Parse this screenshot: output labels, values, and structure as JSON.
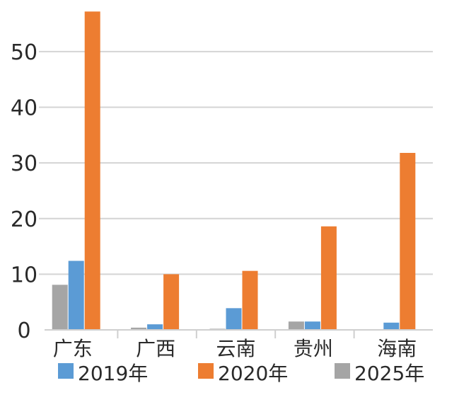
{
  "chart_data": {
    "type": "bar",
    "categories": [
      "广东",
      "广西",
      "云南",
      "贵州",
      "海南"
    ],
    "series": [
      {
        "name": "2019年",
        "color": "#5b9bd5",
        "values": [
          12.4,
          1.0,
          3.9,
          1.5,
          1.3
        ]
      },
      {
        "name": "2020年",
        "color": "#ed7d31",
        "values": [
          57.2,
          10.0,
          10.6,
          18.6,
          31.8
        ]
      },
      {
        "name": "2025年",
        "color": "#a5a5a5",
        "values": [
          8.1,
          0.4,
          0.2,
          1.5,
          0.0
        ]
      }
    ],
    "ylim": [
      0,
      58
    ],
    "yticks": [
      0,
      10,
      20,
      30,
      40,
      50
    ],
    "grid": true,
    "legend_position": "bottom"
  }
}
